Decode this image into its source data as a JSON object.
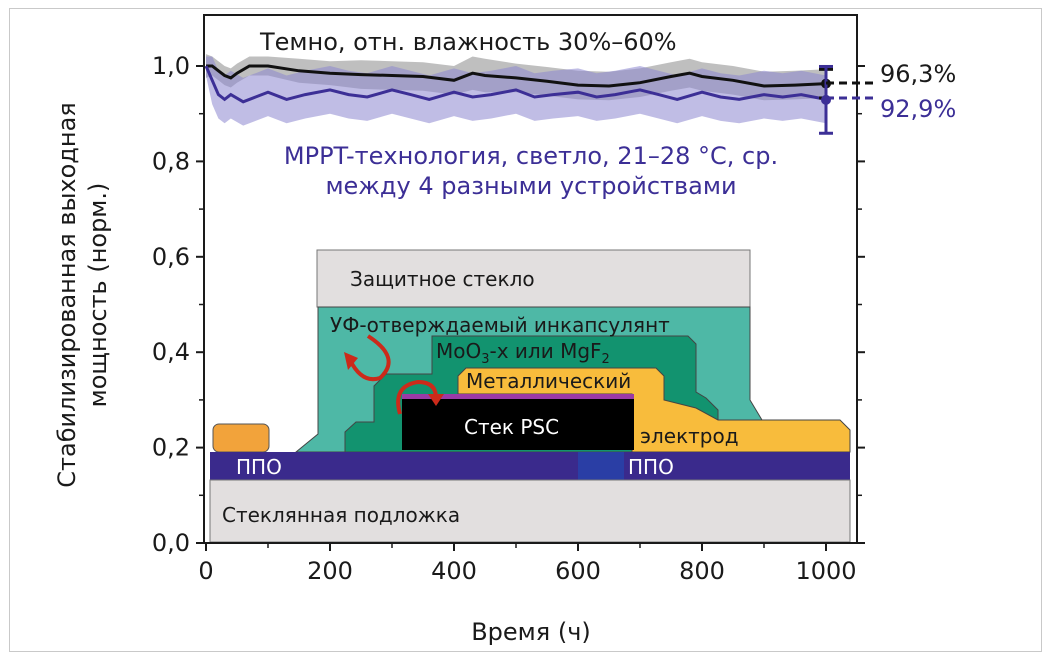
{
  "chart_data": {
    "type": "line",
    "xlabel": "Время (ч)",
    "ylabel_line1": "Стабилизированная выходная",
    "ylabel_line2": "мощность (норм.)",
    "xlim": [
      0,
      1050
    ],
    "ylim": [
      0,
      1.1
    ],
    "x_ticks": [
      0,
      200,
      400,
      600,
      800,
      1000
    ],
    "x_tick_labels": [
      "0",
      "200",
      "400",
      "600",
      "800",
      "1000"
    ],
    "y_ticks": [
      0.0,
      0.2,
      0.4,
      0.6,
      0.8,
      1.0
    ],
    "y_tick_labels": [
      "0,0",
      "0,2",
      "0,4",
      "0,6",
      "0,8",
      "1,0"
    ],
    "grid": false,
    "annotations": {
      "dark_label": "Темно, отн. влажность 30%–60%",
      "light_label_1": "MPPT-технология, светло, 21–28 °C, ср.",
      "light_label_2": "между 4 разными устройствами",
      "dark_final": "96,3%",
      "light_final": "92,9%"
    },
    "series": [
      {
        "color": "#111111",
        "band_color": "#a9a9a9",
        "final_value": 0.963,
        "final_error": 0.03,
        "x": [
          0,
          10,
          20,
          30,
          40,
          50,
          70,
          100,
          150,
          200,
          250,
          300,
          350,
          400,
          430,
          450,
          500,
          550,
          600,
          650,
          700,
          750,
          780,
          800,
          850,
          900,
          950,
          1000
        ],
        "y": [
          1.0,
          1.0,
          0.99,
          0.98,
          0.975,
          0.985,
          1.0,
          1.0,
          0.99,
          0.985,
          0.982,
          0.98,
          0.978,
          0.97,
          0.985,
          0.98,
          0.975,
          0.968,
          0.96,
          0.958,
          0.965,
          0.978,
          0.985,
          0.978,
          0.97,
          0.958,
          0.96,
          0.963
        ],
        "band": [
          0.025,
          0.02,
          0.02,
          0.02,
          0.02,
          0.02,
          0.02,
          0.02,
          0.025,
          0.025,
          0.03,
          0.03,
          0.03,
          0.03,
          0.035,
          0.035,
          0.03,
          0.03,
          0.03,
          0.03,
          0.03,
          0.03,
          0.03,
          0.03,
          0.03,
          0.03,
          0.03,
          0.03
        ]
      },
      {
        "color": "#3c2f96",
        "band_color": "#8c86cf",
        "final_value": 0.929,
        "final_error": 0.07,
        "x": [
          0,
          10,
          20,
          30,
          40,
          60,
          80,
          100,
          130,
          160,
          200,
          230,
          260,
          300,
          330,
          360,
          400,
          430,
          460,
          500,
          530,
          560,
          600,
          630,
          660,
          700,
          730,
          760,
          800,
          830,
          860,
          900,
          930,
          960,
          1000
        ],
        "y": [
          1.0,
          0.97,
          0.94,
          0.93,
          0.94,
          0.925,
          0.935,
          0.945,
          0.93,
          0.94,
          0.95,
          0.94,
          0.935,
          0.95,
          0.94,
          0.93,
          0.945,
          0.935,
          0.94,
          0.95,
          0.935,
          0.94,
          0.945,
          0.935,
          0.94,
          0.95,
          0.94,
          0.93,
          0.945,
          0.935,
          0.93,
          0.94,
          0.935,
          0.94,
          0.93
        ],
        "band": [
          0.02,
          0.05,
          0.05,
          0.05,
          0.05,
          0.05,
          0.05,
          0.05,
          0.05,
          0.05,
          0.05,
          0.05,
          0.05,
          0.05,
          0.05,
          0.05,
          0.05,
          0.05,
          0.05,
          0.05,
          0.05,
          0.05,
          0.05,
          0.05,
          0.05,
          0.05,
          0.05,
          0.05,
          0.05,
          0.05,
          0.05,
          0.05,
          0.05,
          0.05,
          0.05
        ]
      }
    ]
  },
  "inset": {
    "protective_glass": "Защитное стекло",
    "encapsulant": "УФ-отверждаемый инкапсулянт",
    "barrier_prefix": "MoO",
    "barrier_sub1": "3",
    "barrier_mid": "-x или MgF",
    "barrier_sub2": "2",
    "metal_electrode_1": "Металлический",
    "metal_electrode_2": "электрод",
    "psc_stack": "Стек PSC",
    "tco_left": "ППО",
    "tco_right": "ППО",
    "glass_substrate": "Стеклянная подложка",
    "colors": {
      "glass": "#e2dfdf",
      "encapsulant": "#4eb8a6",
      "barrier": "#12936f",
      "metal": "#f8bc3c",
      "psc": "#000000",
      "tco": "#3a2a8c",
      "arrow": "#cc2a1a"
    }
  }
}
